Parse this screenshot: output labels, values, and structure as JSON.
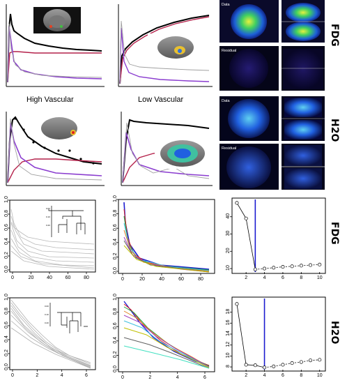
{
  "labels": {
    "high_vascular": "High Vascular",
    "low_vascular": "Low Vascular",
    "fdg_top": "FDG",
    "h2o_top": "H2O",
    "fdg_bottom": "FDG",
    "h2o_bottom": "H2O",
    "data_fdg": "Data",
    "residual_fdg": "Residual",
    "data_h2o": "Data",
    "residual_h2o": "Residual"
  },
  "colors": {
    "black_curve": "#000000",
    "red_curve": "#b4204a",
    "purple_curve": "#8a3ccf",
    "gray_curve": "#a0a0a0",
    "blue_line": "#1b1bd0"
  },
  "chart_data": [
    {
      "id": "fdg-row-ticks",
      "type": "line",
      "xticks": [
        "0",
        "20",
        "40",
        "60",
        "80"
      ],
      "yticks": [
        "0.0",
        "0.2",
        "0.4",
        "0.6",
        "0.8",
        "1.0"
      ]
    },
    {
      "id": "fdg-middle",
      "type": "line",
      "xticks": [
        "0",
        "20",
        "40",
        "60",
        "80"
      ],
      "yticks": [
        "0.0",
        "0.2",
        "0.4",
        "0.6",
        "0.8",
        "1.0"
      ]
    },
    {
      "id": "fdg-scree",
      "type": "scatter",
      "x": [
        1,
        2,
        3,
        4,
        5,
        6,
        7,
        8,
        9,
        10
      ],
      "y": [
        48,
        39,
        9.5,
        10,
        10.5,
        11,
        11.3,
        11.7,
        12,
        12.3
      ],
      "selected": 3,
      "xticks": [
        "2",
        "4",
        "6",
        "8",
        "10"
      ],
      "yticks": [
        "10",
        "20",
        "30",
        "40"
      ],
      "xlim": [
        0.7,
        10.4
      ],
      "ylim": [
        8,
        50
      ]
    },
    {
      "id": "h2o-left",
      "type": "line",
      "xticks": [
        "0",
        "2",
        "4",
        "6"
      ],
      "yticks": [
        "0.0",
        "0.2",
        "0.4",
        "0.6",
        "0.8",
        "1.0"
      ]
    },
    {
      "id": "h2o-middle",
      "type": "line",
      "xticks": [
        "0",
        "2",
        "4",
        "6"
      ],
      "yticks": [
        "0.0",
        "0.2",
        "0.4",
        "0.6",
        "0.8",
        "1.0"
      ]
    },
    {
      "id": "h2o-scree",
      "type": "scatter",
      "x": [
        1,
        2,
        3,
        4,
        5,
        6,
        7,
        8,
        9,
        10
      ],
      "y": [
        19.5,
        8.4,
        8.3,
        7.9,
        8.1,
        8.4,
        8.7,
        8.9,
        9.2,
        9.3
      ],
      "selected": 4,
      "xticks": [
        "2",
        "4",
        "6",
        "8",
        "10"
      ],
      "yticks": [
        "8",
        "10",
        "12",
        "14",
        "16",
        "18"
      ],
      "xlim": [
        0.7,
        10.4
      ],
      "ylim": [
        7.5,
        20.5
      ]
    }
  ]
}
